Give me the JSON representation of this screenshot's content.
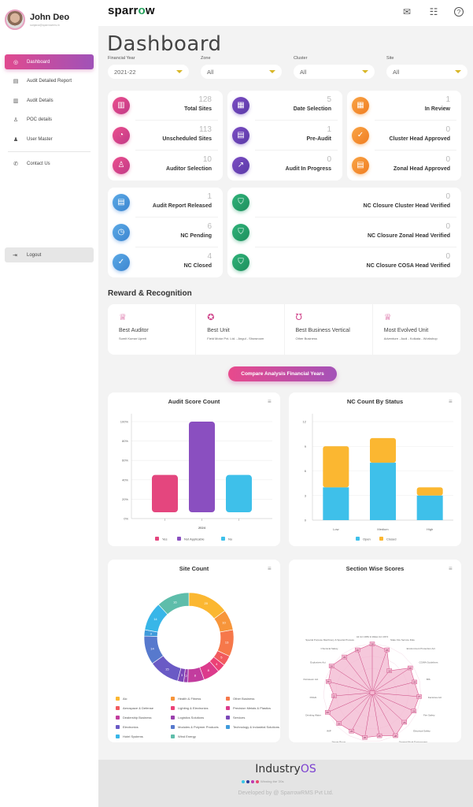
{
  "user": {
    "name": "John Deo",
    "email": "sanjana@sparrowrms.in"
  },
  "sidebar": {
    "items": [
      {
        "label": "Dashboard",
        "icon": "dashboard-icon",
        "glyph": "◎",
        "active": true
      },
      {
        "label": "Audit Detailed Report",
        "icon": "report-icon",
        "glyph": "▤"
      },
      {
        "label": "Audit Details",
        "icon": "audit-details-icon",
        "glyph": "▥"
      },
      {
        "label": "POC details",
        "icon": "poc-icon",
        "glyph": "♙"
      },
      {
        "label": "User Master",
        "icon": "user-icon",
        "glyph": "♟"
      }
    ],
    "contact": {
      "label": "Contact Us",
      "icon": "phone-icon",
      "glyph": "✆"
    },
    "logout": {
      "label": "Logout",
      "icon": "logout-icon",
      "glyph": "⇥"
    }
  },
  "header": {
    "logo_prefix": "sparr",
    "logo_o": "o",
    "logo_suffix": "w",
    "icons": [
      {
        "name": "chat-icon",
        "glyph": "💬"
      },
      {
        "name": "clipboard-icon",
        "glyph": "📋"
      },
      {
        "name": "help-icon",
        "glyph": "?"
      }
    ]
  },
  "page": {
    "title": "Dashboard"
  },
  "filters": [
    {
      "label": "Financial Year",
      "value": "2021-22"
    },
    {
      "label": "Zone",
      "value": "All"
    },
    {
      "label": "Cluster",
      "value": "All"
    },
    {
      "label": "Site",
      "value": "All"
    }
  ],
  "stats": {
    "group1": [
      {
        "value": "128",
        "label": "Total Sites",
        "color": "pink",
        "glyph": "▥"
      },
      {
        "value": "113",
        "label": "Unscheduled Sites",
        "color": "pink",
        "glyph": "◔"
      },
      {
        "value": "10",
        "label": "Auditor Selection",
        "color": "pink",
        "glyph": "♙"
      }
    ],
    "group2": [
      {
        "value": "5",
        "label": "Date Selection",
        "color": "purple",
        "glyph": "▦"
      },
      {
        "value": "1",
        "label": "Pre-Audit",
        "color": "purple",
        "glyph": "▤"
      },
      {
        "value": "0",
        "label": "Audit In Progress",
        "color": "purple",
        "glyph": "↗"
      }
    ],
    "group3": [
      {
        "value": "1",
        "label": "In Review",
        "color": "orange",
        "glyph": "▦"
      },
      {
        "value": "0",
        "label": "Cluster Head Approved",
        "color": "orange",
        "glyph": "✓"
      },
      {
        "value": "0",
        "label": "Zonal Head Approved",
        "color": "orange",
        "glyph": "▤"
      }
    ],
    "group4": [
      {
        "value": "1",
        "label": "Audit Report Released",
        "color": "blue",
        "glyph": "▤"
      },
      {
        "value": "6",
        "label": "NC Pending",
        "color": "blue",
        "glyph": "◷"
      },
      {
        "value": "4",
        "label": "NC Closed",
        "color": "blue",
        "glyph": "✓"
      }
    ],
    "group5": [
      {
        "value": "0",
        "label": "NC Closure Cluster Head Verified",
        "color": "green",
        "glyph": "⛉"
      },
      {
        "value": "0",
        "label": "NC Closure Zonal Head Verified",
        "color": "green",
        "glyph": "⛉"
      },
      {
        "value": "0",
        "label": "NC Closure COSA Head Verified",
        "color": "green",
        "glyph": "⛉"
      }
    ]
  },
  "rewards": {
    "title": "Reward & Recognition",
    "items": [
      {
        "title": "Best Auditor",
        "subtitle": "Sumit Kumar Upreti",
        "icon": "trophy-icon",
        "glyph": "🏆"
      },
      {
        "title": "Best Unit",
        "subtitle": "Field Motor Pvt. Ltd. - Angul - Showroom",
        "icon": "medal-icon",
        "glyph": "🏅"
      },
      {
        "title": "Best Business Vertical",
        "subtitle": "Other Business",
        "icon": "laurel-icon",
        "glyph": "❦"
      },
      {
        "title": "Most Evolved Unit",
        "subtitle": "Adventure - Audi - Kolkata - Workshop",
        "icon": "cup-icon",
        "glyph": "🏆"
      }
    ]
  },
  "compare_button": "Compare Analysis Financial Years",
  "chart_data": [
    {
      "type": "bar",
      "title": "Audit Score Count",
      "categories": [
        "2024"
      ],
      "series": [
        {
          "name": "Yes",
          "values": [
            45
          ],
          "color": "#e4467e"
        },
        {
          "name": "Not Applicable",
          "values": [
            100
          ],
          "color": "#8a4fc0"
        },
        {
          "name": "No",
          "values": [
            45
          ],
          "color": "#3ec0ea"
        }
      ],
      "yticks": [
        "0%",
        "20%",
        "40%",
        "60%",
        "80%",
        "100%"
      ],
      "ylim": [
        0,
        100
      ],
      "legend": "bottom"
    },
    {
      "type": "bar",
      "stacked": true,
      "title": "NC Count By Status",
      "categories": [
        "Low",
        "Medium",
        "High"
      ],
      "series": [
        {
          "name": "Open",
          "values": [
            4,
            7,
            3
          ],
          "color": "#3ec0ea"
        },
        {
          "name": "Closed",
          "values": [
            5,
            3,
            1
          ],
          "color": "#fbb731"
        }
      ],
      "yticks": [
        "0",
        "3",
        "6",
        "9",
        "12"
      ],
      "ylim": [
        0,
        12
      ],
      "legend": "bottom"
    },
    {
      "type": "pie",
      "donut": true,
      "title": "Site Count",
      "slices": [
        {
          "label": "Alc",
          "value": 20,
          "color": "#fbb731"
        },
        {
          "label": "Health & Fitness",
          "value": 10,
          "color": "#f7953a"
        },
        {
          "label": "Other Business",
          "value": 13,
          "color": "#f6784a"
        },
        {
          "label": "Aerospace & Defense",
          "value": 5,
          "color": "#f15a5e"
        },
        {
          "label": "Lighting & Electronics",
          "value": 4,
          "color": "#ec4176"
        },
        {
          "label": "Precision Metals & Plastics",
          "value": 8,
          "color": "#dc3b8c"
        },
        {
          "label": "Dealership Business",
          "value": 8,
          "color": "#c23c9e"
        },
        {
          "label": "Logistics Solutions",
          "value": 2,
          "color": "#9a40ad"
        },
        {
          "label": "Services",
          "value": 3,
          "color": "#7b47b8"
        },
        {
          "label": "Electronics",
          "value": 15,
          "color": "#6a5ac5"
        },
        {
          "label": "Modules & Polymer Products",
          "value": 14,
          "color": "#5779cd"
        },
        {
          "label": "Technology & Industrial Solutions",
          "value": 3,
          "color": "#3f9bdb"
        },
        {
          "label": "Hotel Systems",
          "value": 14,
          "color": "#38b6e8"
        },
        {
          "label": "Wind Energy",
          "value": 16,
          "color": "#5ebdaa"
        }
      ],
      "legend": "bottom"
    },
    {
      "type": "radar",
      "title": "Section Wise Scores",
      "axes": [
        "Air Act 1981 & Water Act 1974",
        "State Fire Service Rule",
        "Environment Protection Act",
        "CGWA Guidelines",
        "BIS",
        "Factories Act",
        "Fire Safety",
        "Electrical Safety",
        "General Work Environment",
        "Training",
        "Work Permit",
        "Server Room",
        "WIP",
        "Drinking Water",
        "FSSAI",
        "Petroleum Act",
        "Explosives Act",
        "Chemical Safety",
        "Special Purpose Machinery & Special Process"
      ],
      "values": [
        28,
        26,
        16,
        26,
        25,
        27,
        26,
        25,
        28,
        25,
        26,
        25,
        26,
        28,
        22,
        26,
        28,
        26,
        26
      ],
      "rmax": 28,
      "color": "#e0608f"
    }
  ],
  "footer": {
    "brand": "Industry",
    "brand_os": "OS",
    "tagline": "Winning the '20s",
    "developed_by": "Developed by @ SparrowRMS Pvt Ltd."
  }
}
